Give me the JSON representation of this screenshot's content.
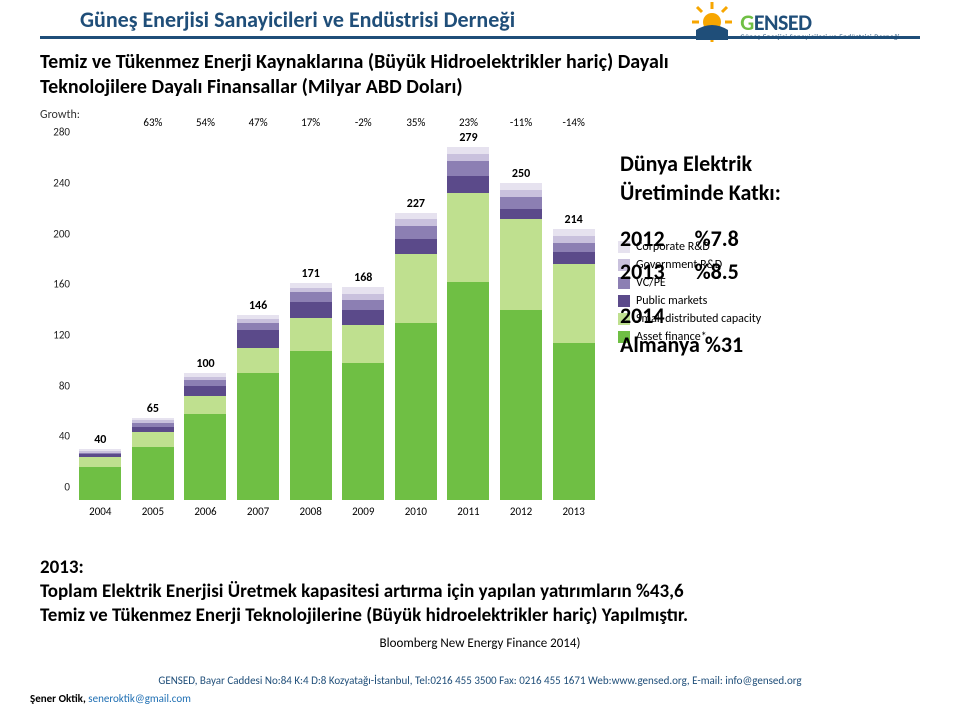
{
  "header": {
    "title": "Güneş Enerjisi Sanayicileri ve Endüstrisi Derneği",
    "logo_text_color_g": "#6fbf44",
    "logo_text_color_rest": "#1f4e79",
    "logo_name": "GENSED",
    "logo_sub": "Güneş Enerjisi Sanayicileri ve Endüstrisi Derneği"
  },
  "subtitle_l1": "Temiz ve Tükenmez Enerji Kaynaklarına  (Büyük Hidroelektrikler hariç) Dayalı",
  "subtitle_l2": "Teknolojilere Dayalı Finansallar (Milyar ABD Doları)",
  "chart": {
    "type": "stacked-bar",
    "y_max": 300,
    "y_ticks": [
      0,
      40,
      80,
      120,
      160,
      200,
      240,
      280
    ],
    "years": [
      "2004",
      "2005",
      "2006",
      "2007",
      "2008",
      "2009",
      "2010",
      "2011",
      "2012",
      "2013"
    ],
    "growth_label": "Growth:",
    "growth": [
      "",
      "63%",
      "54%",
      "47%",
      "17%",
      "-2%",
      "35%",
      "23%",
      "-11%",
      "-14%"
    ],
    "totals": [
      40,
      65,
      100,
      146,
      171,
      168,
      227,
      279,
      250,
      214
    ],
    "series": [
      {
        "name": "Asset finance*",
        "color": "#6fbf44"
      },
      {
        "name": "Small distributed capacity",
        "color": "#bfe08f"
      },
      {
        "name": "Public markets",
        "color": "#5b4a8a"
      },
      {
        "name": "VC/PE",
        "color": "#8c7fb3"
      },
      {
        "name": "Government R&D",
        "color": "#c9c1dd"
      },
      {
        "name": "Corporate R&D",
        "color": "#e6e2ef"
      }
    ],
    "stacks": [
      [
        26,
        8,
        2,
        1,
        1.5,
        1.5
      ],
      [
        42,
        12,
        4,
        3,
        2,
        2
      ],
      [
        68,
        14,
        8,
        5,
        2.5,
        2.5
      ],
      [
        100,
        20,
        14,
        6,
        3,
        3
      ],
      [
        118,
        26,
        12,
        8,
        3.5,
        3.5
      ],
      [
        108,
        30,
        12,
        8,
        5,
        5
      ],
      [
        140,
        54,
        12,
        10,
        5.5,
        5.5
      ],
      [
        172,
        70,
        14,
        12,
        5.5,
        5.5
      ],
      [
        150,
        72,
        8,
        9,
        5.5,
        5.5
      ],
      [
        124,
        62,
        10,
        7,
        5.5,
        5.5
      ]
    ],
    "label_fontsize": 11
  },
  "side": {
    "head_l1": "Dünya Elektrik",
    "head_l2": "Üretiminde Katkı:",
    "r1y": "2012",
    "r1v": "%7.8",
    "r2y": "2013",
    "r2v": "%8.5",
    "r3y": "2014",
    "r3v": "Almanya  %31"
  },
  "foot": {
    "l1": "2013:",
    "l2": "Toplam Elektrik Enerjisi Üretmek kapasitesi artırma için yapılan yatırımların   %43,6",
    "l3": "Temiz ve Tükenmez Enerji Teknolojilerine (Büyük hidroelektrikler  hariç) Yapılmıştır."
  },
  "source": "Bloomberg New Energy Finance 2014)",
  "footer": "GENSED, Bayar Caddesi No:84 K:4  D:8 Kozyatağı-İstanbul, Tel:0216 455 3500  Fax: 0216 455 1671 Web:www.gensed.org, E-mail: info@gensed.org",
  "author_name": "Şener Oktik,",
  "author_mail": "seneroktik@gmail.com"
}
